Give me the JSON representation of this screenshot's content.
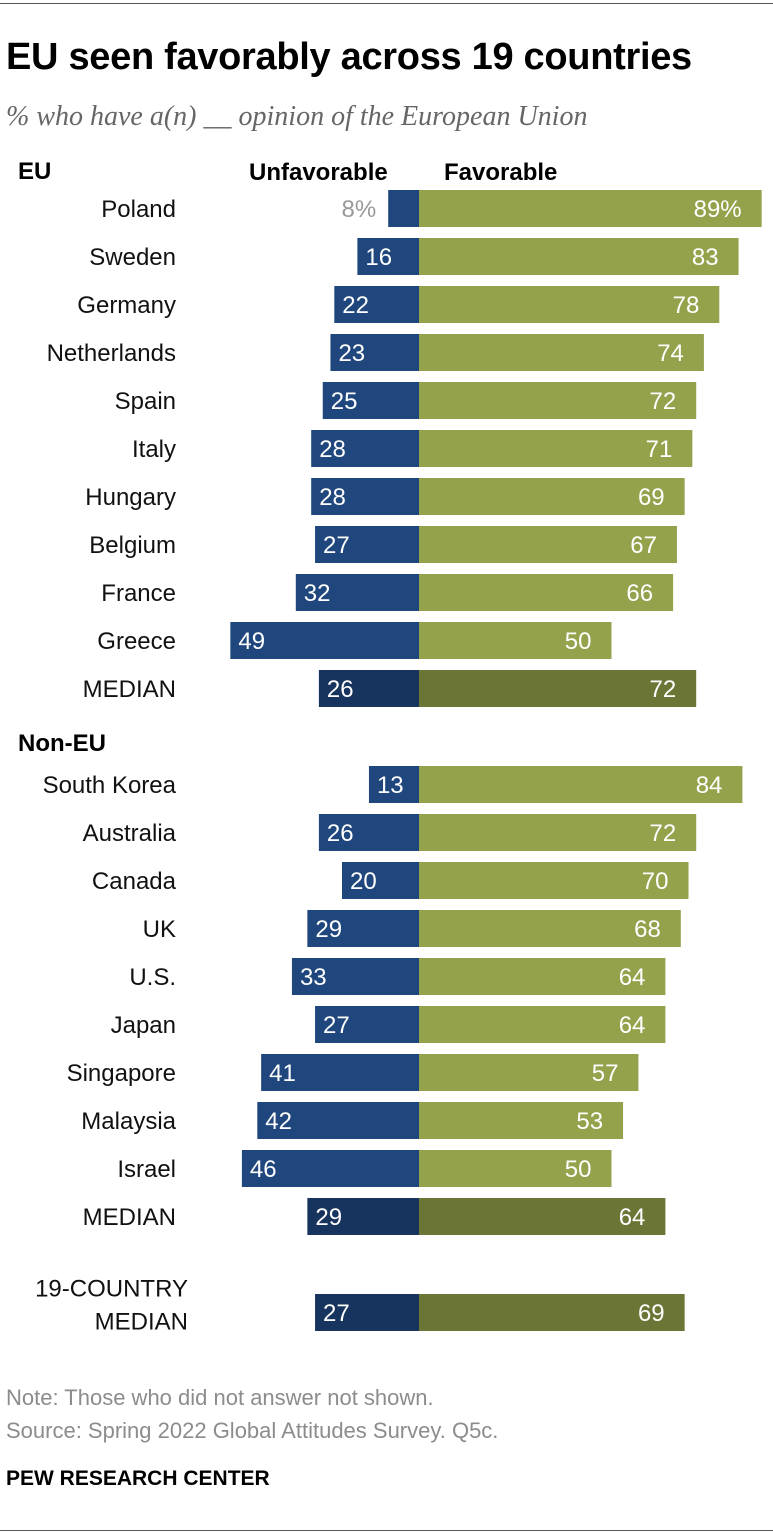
{
  "title": "EU seen favorably across 19 countries",
  "subtitle": "% who have a(n) __ opinion of the European Union",
  "legend": {
    "unfavorable": "Unfavorable",
    "favorable": "Favorable"
  },
  "colors": {
    "unfavorable": "#1f477e",
    "favorable": "#95a24c",
    "median_unfavorable": "#17345e",
    "median_favorable": "#6b7636",
    "label_on_bar": "#ffffff",
    "label_off_bar": "#999999"
  },
  "chart_data": {
    "type": "bar",
    "orientation": "horizontal-diverging",
    "groups": [
      {
        "label": "EU",
        "rows": [
          {
            "country": "Poland",
            "unfavorable": 8,
            "favorable": 89,
            "unfav_label": "8%",
            "fav_label": "89%"
          },
          {
            "country": "Sweden",
            "unfavorable": 16,
            "favorable": 83,
            "unfav_label": "16",
            "fav_label": "83"
          },
          {
            "country": "Germany",
            "unfavorable": 22,
            "favorable": 78,
            "unfav_label": "22",
            "fav_label": "78"
          },
          {
            "country": "Netherlands",
            "unfavorable": 23,
            "favorable": 74,
            "unfav_label": "23",
            "fav_label": "74"
          },
          {
            "country": "Spain",
            "unfavorable": 25,
            "favorable": 72,
            "unfav_label": "25",
            "fav_label": "72"
          },
          {
            "country": "Italy",
            "unfavorable": 28,
            "favorable": 71,
            "unfav_label": "28",
            "fav_label": "71"
          },
          {
            "country": "Hungary",
            "unfavorable": 28,
            "favorable": 69,
            "unfav_label": "28",
            "fav_label": "69"
          },
          {
            "country": "Belgium",
            "unfavorable": 27,
            "favorable": 67,
            "unfav_label": "27",
            "fav_label": "67"
          },
          {
            "country": "France",
            "unfavorable": 32,
            "favorable": 66,
            "unfav_label": "32",
            "fav_label": "66"
          },
          {
            "country": "Greece",
            "unfavorable": 49,
            "favorable": 50,
            "unfav_label": "49",
            "fav_label": "50"
          },
          {
            "country": "MEDIAN",
            "unfavorable": 26,
            "favorable": 72,
            "unfav_label": "26",
            "fav_label": "72",
            "median": true
          }
        ]
      },
      {
        "label": "Non-EU",
        "rows": [
          {
            "country": "South Korea",
            "unfavorable": 13,
            "favorable": 84,
            "unfav_label": "13",
            "fav_label": "84"
          },
          {
            "country": "Australia",
            "unfavorable": 26,
            "favorable": 72,
            "unfav_label": "26",
            "fav_label": "72"
          },
          {
            "country": "Canada",
            "unfavorable": 20,
            "favorable": 70,
            "unfav_label": "20",
            "fav_label": "70"
          },
          {
            "country": "UK",
            "unfavorable": 29,
            "favorable": 68,
            "unfav_label": "29",
            "fav_label": "68"
          },
          {
            "country": "U.S.",
            "unfavorable": 33,
            "favorable": 64,
            "unfav_label": "33",
            "fav_label": "64"
          },
          {
            "country": "Japan",
            "unfavorable": 27,
            "favorable": 64,
            "unfav_label": "27",
            "fav_label": "64"
          },
          {
            "country": "Singapore",
            "unfavorable": 41,
            "favorable": 57,
            "unfav_label": "41",
            "fav_label": "57"
          },
          {
            "country": "Malaysia",
            "unfavorable": 42,
            "favorable": 53,
            "unfav_label": "42",
            "fav_label": "53"
          },
          {
            "country": "Israel",
            "unfavorable": 46,
            "favorable": 50,
            "unfav_label": "46",
            "fav_label": "50"
          },
          {
            "country": "MEDIAN",
            "unfavorable": 29,
            "favorable": 64,
            "unfav_label": "29",
            "fav_label": "64",
            "median": true
          }
        ]
      }
    ],
    "overall": {
      "label_lines": [
        "19-COUNTRY",
        "MEDIAN"
      ],
      "unfavorable": 27,
      "favorable": 69,
      "unfav_label": "27",
      "fav_label": "69"
    }
  },
  "footer": {
    "note": "Note: Those who did not answer not shown.",
    "source": "Source: Spring 2022 Global Attitudes Survey. Q5c.",
    "brand": "PEW RESEARCH CENTER"
  }
}
